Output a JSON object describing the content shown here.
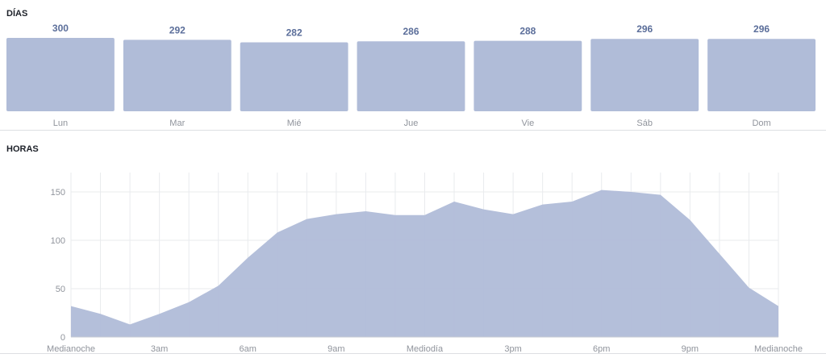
{
  "sections": {
    "days_title": "DÍAS",
    "hours_title": "HORAS"
  },
  "colors": {
    "fill": "#b0bcd8",
    "value_text": "#5b6e9a",
    "label_text": "#90949c",
    "grid": "#e9ebee"
  },
  "chart_data": [
    {
      "type": "bar",
      "title": "DÍAS",
      "categories": [
        "Lun",
        "Mar",
        "Mié",
        "Jue",
        "Vie",
        "Sáb",
        "Dom"
      ],
      "values": [
        300,
        292,
        282,
        286,
        288,
        296,
        296
      ]
    },
    {
      "type": "area",
      "title": "HORAS",
      "x": [
        0,
        1,
        2,
        3,
        4,
        5,
        6,
        7,
        8,
        9,
        10,
        11,
        12,
        13,
        14,
        15,
        16,
        17,
        18,
        19,
        20,
        21,
        22,
        23,
        24
      ],
      "values": [
        32,
        24,
        13,
        24,
        36,
        53,
        82,
        108,
        122,
        127,
        130,
        126,
        126,
        140,
        132,
        127,
        137,
        140,
        152,
        150,
        147,
        121,
        86,
        51,
        32
      ],
      "x_tick_positions": [
        0,
        3,
        6,
        9,
        12,
        15,
        18,
        21,
        24
      ],
      "x_tick_labels": [
        "Medianoche",
        "3am",
        "6am",
        "9am",
        "Mediodía",
        "3pm",
        "6pm",
        "9pm",
        "Medianoche"
      ],
      "y_ticks": [
        0,
        50,
        100,
        150
      ],
      "ylim": [
        0,
        170
      ],
      "grid": true
    }
  ]
}
